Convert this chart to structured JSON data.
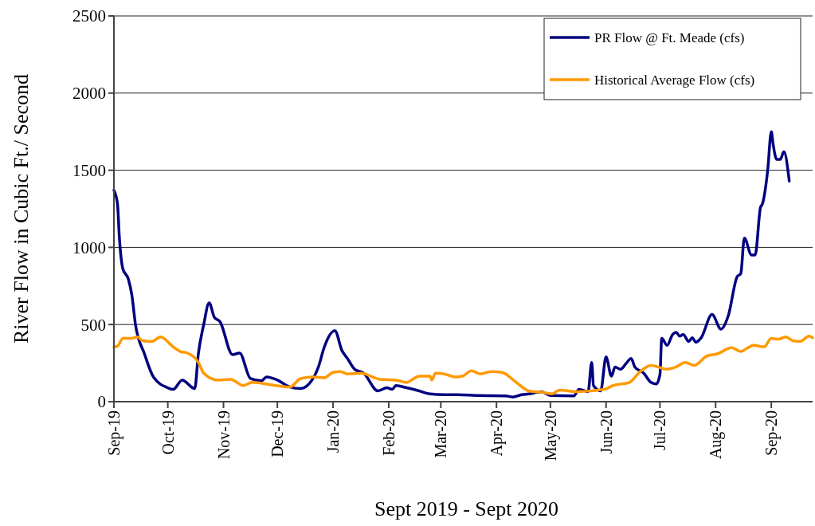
{
  "chart_data": {
    "type": "line",
    "xlabel": "Sept 2019 - Sept 2020",
    "ylabel": "River Flow in Cubic Ft./ Second",
    "xlim": [
      "2019-09-01",
      "2020-09-24"
    ],
    "xticks": [
      {
        "value": "2019-09-01",
        "label": "Sep-19"
      },
      {
        "value": "2019-10-01",
        "label": "Oct-19"
      },
      {
        "value": "2019-11-01",
        "label": "Nov-19"
      },
      {
        "value": "2019-12-01",
        "label": "Dec-19"
      },
      {
        "value": "2020-01-01",
        "label": "Jan-20"
      },
      {
        "value": "2020-02-01",
        "label": "Feb-20"
      },
      {
        "value": "2020-03-01",
        "label": "Mar-20"
      },
      {
        "value": "2020-04-01",
        "label": "Apr-20"
      },
      {
        "value": "2020-05-01",
        "label": "May-20"
      },
      {
        "value": "2020-06-01",
        "label": "Jun-20"
      },
      {
        "value": "2020-07-01",
        "label": "Jul-20"
      },
      {
        "value": "2020-08-01",
        "label": "Aug-20"
      },
      {
        "value": "2020-09-01",
        "label": "Sep-20"
      }
    ],
    "ylim": [
      0,
      2500
    ],
    "yticks": [
      0,
      500,
      1000,
      1500,
      2000,
      2500
    ],
    "grid": "y",
    "legend": "top right",
    "marker": "none",
    "line_style": "solid",
    "series": [
      {
        "name": "PR Flow @ Ft. Meade (cfs)",
        "color": "#000080",
        "x": [
          "2019-09-01",
          "2019-09-03",
          "2019-09-04",
          "2019-09-06",
          "2019-09-09",
          "2019-09-11",
          "2019-09-13",
          "2019-09-18",
          "2019-09-23",
          "2019-10-01",
          "2019-10-04",
          "2019-10-09",
          "2019-10-16",
          "2019-10-18",
          "2019-10-21",
          "2019-10-24",
          "2019-10-27",
          "2019-10-30",
          "2019-11-06",
          "2019-11-10",
          "2019-11-16",
          "2019-11-22",
          "2019-11-25",
          "2019-12-01",
          "2019-12-08",
          "2019-12-14",
          "2019-12-20",
          "2019-12-24",
          "2019-12-27",
          "2020-01-02",
          "2020-01-06",
          "2020-01-09",
          "2020-01-13",
          "2020-01-18",
          "2020-01-26",
          "2020-01-31",
          "2020-02-03",
          "2020-02-05",
          "2020-02-11",
          "2020-02-18",
          "2020-02-24",
          "2020-03-03",
          "2020-03-10",
          "2020-03-22",
          "2020-04-06",
          "2020-04-10",
          "2020-04-15",
          "2020-04-19",
          "2020-04-26",
          "2020-05-01",
          "2020-05-14",
          "2020-05-17",
          "2020-05-22",
          "2020-05-24",
          "2020-05-25",
          "2020-05-29",
          "2020-06-01",
          "2020-06-04",
          "2020-06-06",
          "2020-06-09",
          "2020-06-12",
          "2020-06-15",
          "2020-06-17",
          "2020-06-22",
          "2020-06-26",
          "2020-06-29",
          "2020-07-01",
          "2020-07-02",
          "2020-07-05",
          "2020-07-08",
          "2020-07-10",
          "2020-07-12",
          "2020-07-14",
          "2020-07-17",
          "2020-07-19",
          "2020-07-21",
          "2020-07-24",
          "2020-07-30",
          "2020-08-04",
          "2020-08-08",
          "2020-08-13",
          "2020-08-15",
          "2020-08-17",
          "2020-08-21",
          "2020-08-23",
          "2020-08-26",
          "2020-08-27",
          "2020-08-30",
          "2020-09-01",
          "2020-09-02",
          "2020-09-04",
          "2020-09-06",
          "2020-09-08",
          "2020-09-11"
        ],
        "values": [
          1370,
          1280,
          1070,
          860,
          795,
          690,
          500,
          310,
          160,
          90,
          80,
          140,
          85,
          310,
          500,
          640,
          545,
          520,
          305,
          315,
          150,
          135,
          160,
          140,
          95,
          85,
          135,
          230,
          350,
          460,
          330,
          280,
          210,
          185,
          70,
          90,
          80,
          105,
          90,
          70,
          50,
          45,
          45,
          40,
          38,
          30,
          45,
          50,
          65,
          40,
          38,
          80,
          65,
          255,
          105,
          70,
          290,
          165,
          225,
          210,
          245,
          280,
          225,
          185,
          125,
          115,
          175,
          410,
          365,
          435,
          450,
          425,
          435,
          390,
          415,
          385,
          415,
          565,
          470,
          555,
          810,
          830,
          1060,
          950,
          950,
          1260,
          1280,
          1500,
          1750,
          1670,
          1570,
          1570,
          1620,
          1430
        ]
      },
      {
        "name": "Historical Average Flow (cfs)",
        "color": "#ff9900",
        "x": [
          "2019-09-01",
          "2019-09-03",
          "2019-09-06",
          "2019-09-11",
          "2019-09-14",
          "2019-09-17",
          "2019-09-22",
          "2019-09-27",
          "2019-10-04",
          "2019-10-08",
          "2019-10-12",
          "2019-10-18",
          "2019-10-21",
          "2019-10-29",
          "2019-11-05",
          "2019-11-12",
          "2019-11-17",
          "2019-11-30",
          "2019-12-08",
          "2019-12-14",
          "2019-12-21",
          "2019-12-27",
          "2020-01-01",
          "2020-01-05",
          "2020-01-09",
          "2020-01-17",
          "2020-01-23",
          "2020-01-27",
          "2020-02-05",
          "2020-02-11",
          "2020-02-15",
          "2020-02-18",
          "2020-02-24",
          "2020-02-25",
          "2020-02-27",
          "2020-03-03",
          "2020-03-09",
          "2020-03-13",
          "2020-03-18",
          "2020-03-23",
          "2020-03-29",
          "2020-04-04",
          "2020-04-12",
          "2020-04-19",
          "2020-04-27",
          "2020-05-02",
          "2020-05-06",
          "2020-05-16",
          "2020-05-31",
          "2020-06-05",
          "2020-06-14",
          "2020-06-20",
          "2020-06-26",
          "2020-07-05",
          "2020-07-10",
          "2020-07-15",
          "2020-07-20",
          "2020-07-27",
          "2020-08-02",
          "2020-08-10",
          "2020-08-15",
          "2020-08-19",
          "2020-08-22",
          "2020-08-28",
          "2020-09-01",
          "2020-09-05",
          "2020-09-09",
          "2020-09-13",
          "2020-09-17",
          "2020-09-22",
          "2020-09-24"
        ],
        "values": [
          355,
          360,
          410,
          410,
          420,
          395,
          390,
          420,
          355,
          325,
          315,
          255,
          185,
          140,
          145,
          105,
          125,
          105,
          95,
          150,
          160,
          155,
          190,
          195,
          180,
          185,
          160,
          145,
          140,
          125,
          150,
          165,
          165,
          140,
          185,
          180,
          160,
          165,
          200,
          180,
          195,
          190,
          125,
          70,
          60,
          50,
          75,
          65,
          80,
          105,
          125,
          195,
          235,
          210,
          225,
          255,
          235,
          295,
          310,
          350,
          325,
          350,
          365,
          355,
          410,
          405,
          420,
          395,
          390,
          425,
          415
        ]
      }
    ]
  }
}
